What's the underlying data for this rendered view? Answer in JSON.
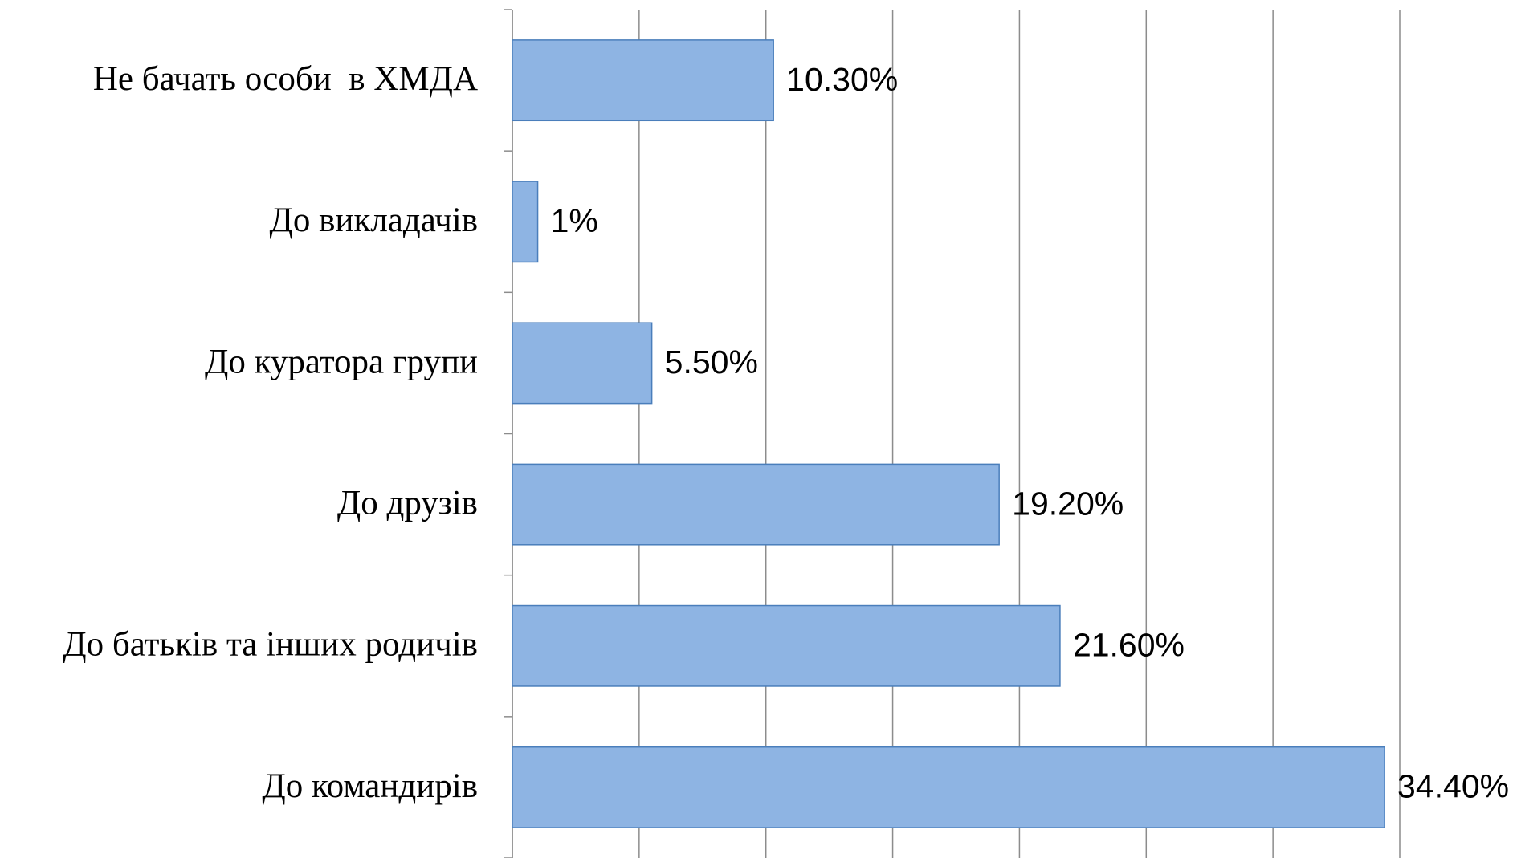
{
  "chart_data": {
    "type": "hbar",
    "categories": [
      "Не бачать особи  в ХМДА",
      "До викладачів",
      "До куратора групи",
      "До друзів",
      "До батьків та інших родичів",
      "До командирів"
    ],
    "values": [
      10.3,
      1,
      5.5,
      19.2,
      21.6,
      34.4
    ],
    "value_labels": [
      "10.30%",
      "1%",
      "5.50%",
      "19.20%",
      "21.60%",
      "34.40%"
    ],
    "color": "#8eb4e3",
    "xlim": [
      0,
      35
    ],
    "xticks": [
      0,
      5,
      10,
      15,
      20,
      25,
      30,
      35
    ],
    "grid": true
  }
}
